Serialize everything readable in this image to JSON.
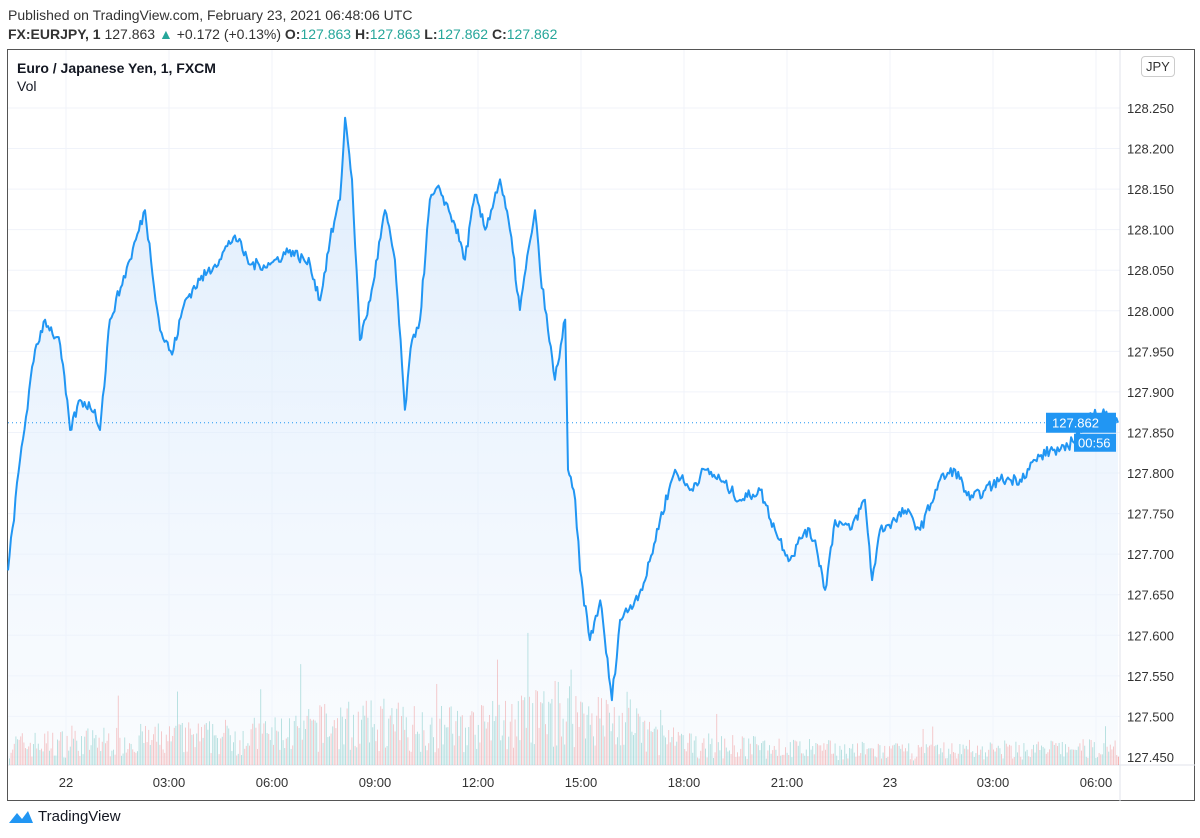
{
  "header": {
    "published": "Published on TradingView.com, February 23, 2021 06:48:06 UTC",
    "symbol": "FX:EURJPY, 1",
    "last": "127.863",
    "arrow": "▲",
    "change": "+0.172 (+0.13%)",
    "o_label": "O:",
    "o": "127.863",
    "h_label": "H:",
    "h": "127.863",
    "l_label": "L:",
    "l": "127.862",
    "c_label": "C:",
    "c": "127.862"
  },
  "chart_title": "Euro / Japanese Yen, 1, FXCM",
  "volume_label": "Vol",
  "currency": "JPY",
  "price_tag": "127.862",
  "countdown": "00:56",
  "brand": "TradingView",
  "colors": {
    "line": "#2196f3",
    "up": "#26a69a",
    "down": "#ef5350",
    "fill": "#e3f0fd"
  },
  "chart_data": {
    "type": "area",
    "title": "Euro / Japanese Yen, 1, FXCM",
    "xlabel": "",
    "ylabel": "",
    "ylim": [
      127.45,
      128.3
    ],
    "yticks": [
      "128.250",
      "128.200",
      "128.150",
      "128.100",
      "128.050",
      "128.000",
      "127.950",
      "127.900",
      "127.850",
      "127.800",
      "127.750",
      "127.700",
      "127.650",
      "127.600",
      "127.550",
      "127.500",
      "127.450"
    ],
    "xticks": [
      {
        "h": 0,
        "label": "22"
      },
      {
        "h": 3,
        "label": "03:00"
      },
      {
        "h": 6,
        "label": "06:00"
      },
      {
        "h": 9,
        "label": "09:00"
      },
      {
        "h": 12,
        "label": "12:00"
      },
      {
        "h": 15,
        "label": "15:00"
      },
      {
        "h": 18,
        "label": "18:00"
      },
      {
        "h": 21,
        "label": "21:00"
      },
      {
        "h": 24,
        "label": "23"
      },
      {
        "h": 27,
        "label": "03:00"
      },
      {
        "h": 30,
        "label": "06:00"
      }
    ],
    "x_units": "hours since Feb 22 00:00 UTC",
    "series": [
      {
        "name": "EURJPY close",
        "points": [
          [
            -1.69,
            127.68
          ],
          [
            -1.34,
            127.816
          ],
          [
            -0.9,
            127.952
          ],
          [
            -0.61,
            127.989
          ],
          [
            -0.17,
            127.958
          ],
          [
            0.12,
            127.853
          ],
          [
            0.41,
            127.89
          ],
          [
            0.84,
            127.878
          ],
          [
            0.99,
            127.853
          ],
          [
            1.28,
            127.989
          ],
          [
            1.86,
            128.063
          ],
          [
            2.3,
            128.124
          ],
          [
            2.74,
            127.976
          ],
          [
            3.09,
            127.946
          ],
          [
            3.47,
            128.013
          ],
          [
            3.9,
            128.038
          ],
          [
            4.34,
            128.057
          ],
          [
            4.92,
            128.093
          ],
          [
            5.36,
            128.057
          ],
          [
            5.94,
            128.057
          ],
          [
            6.52,
            128.075
          ],
          [
            7.11,
            128.057
          ],
          [
            7.4,
            128.013
          ],
          [
            7.69,
            128.087
          ],
          [
            7.98,
            128.137
          ],
          [
            8.13,
            128.238
          ],
          [
            8.33,
            128.162
          ],
          [
            8.56,
            127.964
          ],
          [
            8.86,
            128.013
          ],
          [
            9.29,
            128.124
          ],
          [
            9.58,
            128.063
          ],
          [
            9.87,
            127.878
          ],
          [
            10.08,
            127.964
          ],
          [
            10.31,
            127.989
          ],
          [
            10.6,
            128.137
          ],
          [
            10.89,
            128.15
          ],
          [
            11.33,
            128.106
          ],
          [
            11.62,
            128.063
          ],
          [
            11.91,
            128.143
          ],
          [
            12.21,
            128.1
          ],
          [
            12.64,
            128.162
          ],
          [
            12.93,
            128.1
          ],
          [
            13.22,
            128.001
          ],
          [
            13.52,
            128.087
          ],
          [
            13.66,
            128.124
          ],
          [
            13.81,
            128.05
          ],
          [
            14.04,
            127.976
          ],
          [
            14.24,
            127.915
          ],
          [
            14.54,
            127.989
          ],
          [
            14.62,
            127.804
          ],
          [
            14.83,
            127.767
          ],
          [
            14.97,
            127.68
          ],
          [
            15.26,
            127.594
          ],
          [
            15.56,
            127.643
          ],
          [
            15.9,
            127.52
          ],
          [
            16.14,
            127.619
          ],
          [
            16.57,
            127.643
          ],
          [
            16.87,
            127.668
          ],
          [
            17.3,
            127.742
          ],
          [
            17.74,
            127.804
          ],
          [
            18.17,
            127.779
          ],
          [
            18.61,
            127.804
          ],
          [
            19.05,
            127.792
          ],
          [
            19.63,
            127.767
          ],
          [
            20.22,
            127.779
          ],
          [
            20.65,
            127.73
          ],
          [
            21.09,
            127.693
          ],
          [
            21.53,
            127.73
          ],
          [
            21.82,
            127.717
          ],
          [
            22.11,
            127.656
          ],
          [
            22.4,
            127.742
          ],
          [
            22.84,
            127.73
          ],
          [
            23.27,
            127.767
          ],
          [
            23.48,
            127.668
          ],
          [
            23.71,
            127.73
          ],
          [
            24.15,
            127.742
          ],
          [
            24.44,
            127.754
          ],
          [
            24.88,
            127.73
          ],
          [
            25.46,
            127.792
          ],
          [
            25.9,
            127.804
          ],
          [
            26.33,
            127.767
          ],
          [
            26.77,
            127.779
          ],
          [
            27.21,
            127.792
          ],
          [
            27.79,
            127.792
          ],
          [
            28.23,
            127.816
          ],
          [
            28.66,
            127.828
          ],
          [
            29.1,
            127.828
          ],
          [
            29.54,
            127.853
          ],
          [
            29.97,
            127.878
          ],
          [
            30.26,
            127.872
          ],
          [
            30.64,
            127.862
          ]
        ]
      }
    ],
    "volume_envelope": [
      [
        -1.69,
        0.3
      ],
      [
        6,
        0.45
      ],
      [
        8,
        0.6
      ],
      [
        12,
        0.55
      ],
      [
        14.5,
        0.8
      ],
      [
        15.5,
        0.7
      ],
      [
        18,
        0.3
      ],
      [
        24,
        0.2
      ],
      [
        30.64,
        0.25
      ]
    ],
    "last_price": 127.862,
    "grid": true,
    "legend": "top-left"
  }
}
